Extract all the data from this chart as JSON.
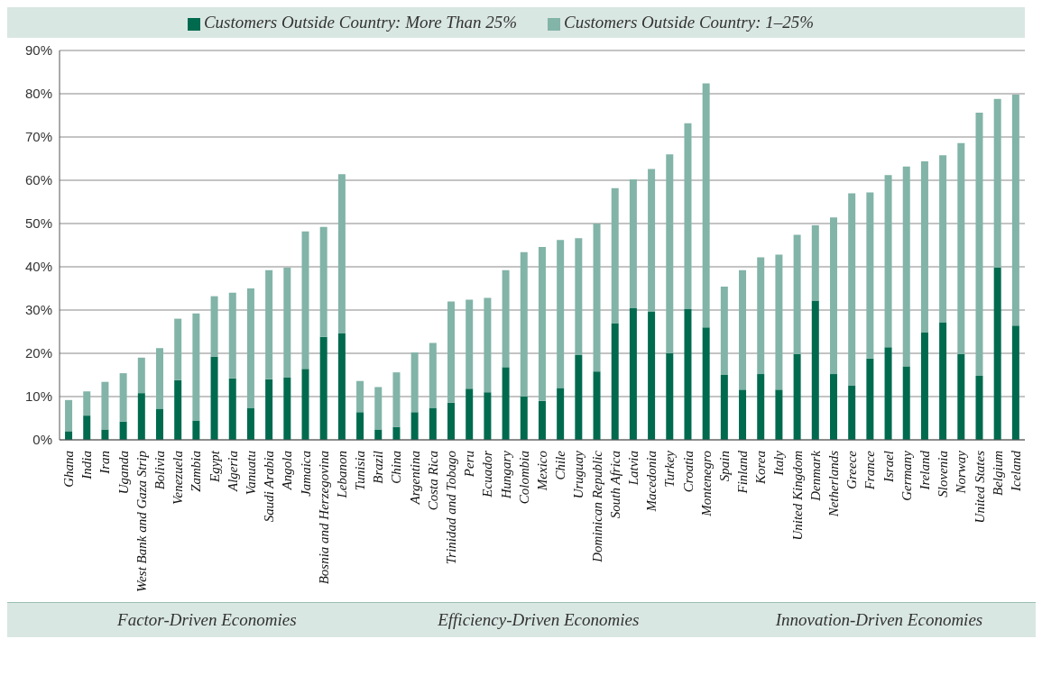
{
  "chart_data": {
    "type": "bar",
    "stacked": true,
    "categories": [
      "Ghana",
      "India",
      "Iran",
      "Uganda",
      "West Bank and Gaza Strip",
      "Bolivia",
      "Venezuela",
      "Zambia",
      "Egypt",
      "Algeria",
      "Vanuatu",
      "Saudi Arabia",
      "Angola",
      "Jamaica",
      "Bosnia and Herzegovina",
      "Lebanon",
      "Tunisia",
      "Brazil",
      "China",
      "Argentina",
      "Costa Rica",
      "Trinidad and Tobago",
      "Peru",
      "Ecuador",
      "Hungary",
      "Colombia",
      "Mexico",
      "Chile",
      "Uruguay",
      "Dominican Republic",
      "South Africa",
      "Latvia",
      "Macedonia",
      "Turkey",
      "Croatia",
      "Montenegro",
      "Spain",
      "Finland",
      "Korea",
      "Italy",
      "United Kingdom",
      "Denmark",
      "Netherlands",
      "Greece",
      "France",
      "Israel",
      "Germany",
      "Ireland",
      "Slovenia",
      "Norway",
      "United States",
      "Belgium",
      "Iceland"
    ],
    "series": [
      {
        "name": "Customers Outside Country: More Than 25%",
        "color": "#006a4e",
        "values": [
          2.0,
          5.6,
          2.4,
          4.2,
          10.8,
          7.2,
          13.8,
          4.4,
          19.2,
          14.2,
          7.4,
          14.0,
          14.4,
          16.4,
          23.8,
          24.6,
          6.4,
          2.4,
          3.0,
          6.4,
          7.4,
          8.6,
          11.8,
          11.0,
          16.8,
          10.0,
          9.0,
          12.0,
          19.6,
          15.8,
          27.0,
          30.4,
          29.6,
          20.0,
          30.2,
          26.0,
          15.0,
          11.6,
          15.2,
          11.6,
          19.8,
          32.2,
          15.2,
          12.6,
          18.8,
          21.4,
          17.0,
          24.8,
          27.2,
          19.8,
          14.8,
          39.8,
          26.4
        ]
      },
      {
        "name": "Customers Outside Country: 1–25%",
        "color": "#82b4a8",
        "values": [
          7.2,
          5.6,
          11.0,
          11.2,
          8.2,
          14.0,
          14.2,
          24.8,
          14.0,
          19.8,
          27.6,
          25.2,
          25.4,
          31.8,
          25.4,
          36.8,
          7.2,
          9.8,
          12.6,
          13.8,
          15.0,
          23.4,
          20.6,
          21.8,
          22.4,
          33.4,
          35.6,
          34.2,
          27.0,
          34.2,
          31.2,
          29.8,
          33.0,
          46.0,
          43.0,
          56.4,
          20.4,
          27.6,
          27.0,
          31.2,
          27.6,
          17.4,
          36.2,
          44.4,
          38.4,
          39.8,
          46.2,
          39.6,
          38.6,
          48.8,
          60.8,
          39.0,
          53.4
        ]
      }
    ],
    "ylim": [
      0,
      90
    ],
    "yticks": [
      {
        "value": 0,
        "label": "0%"
      },
      {
        "value": 10,
        "label": "10%"
      },
      {
        "value": 20,
        "label": "20%"
      },
      {
        "value": 30,
        "label": "30%"
      },
      {
        "value": 40,
        "label": "40%"
      },
      {
        "value": 50,
        "label": "50%"
      },
      {
        "value": 60,
        "label": "60%"
      },
      {
        "value": 70,
        "label": "70%"
      },
      {
        "value": 80,
        "label": "80%"
      },
      {
        "value": 90,
        "label": "90%"
      }
    ],
    "grid": "y",
    "legend": "top",
    "annotations": [
      "Factor-Driven Economies",
      "Efficiency-Driven Economies",
      "Innovation-Driven Economies"
    ]
  }
}
